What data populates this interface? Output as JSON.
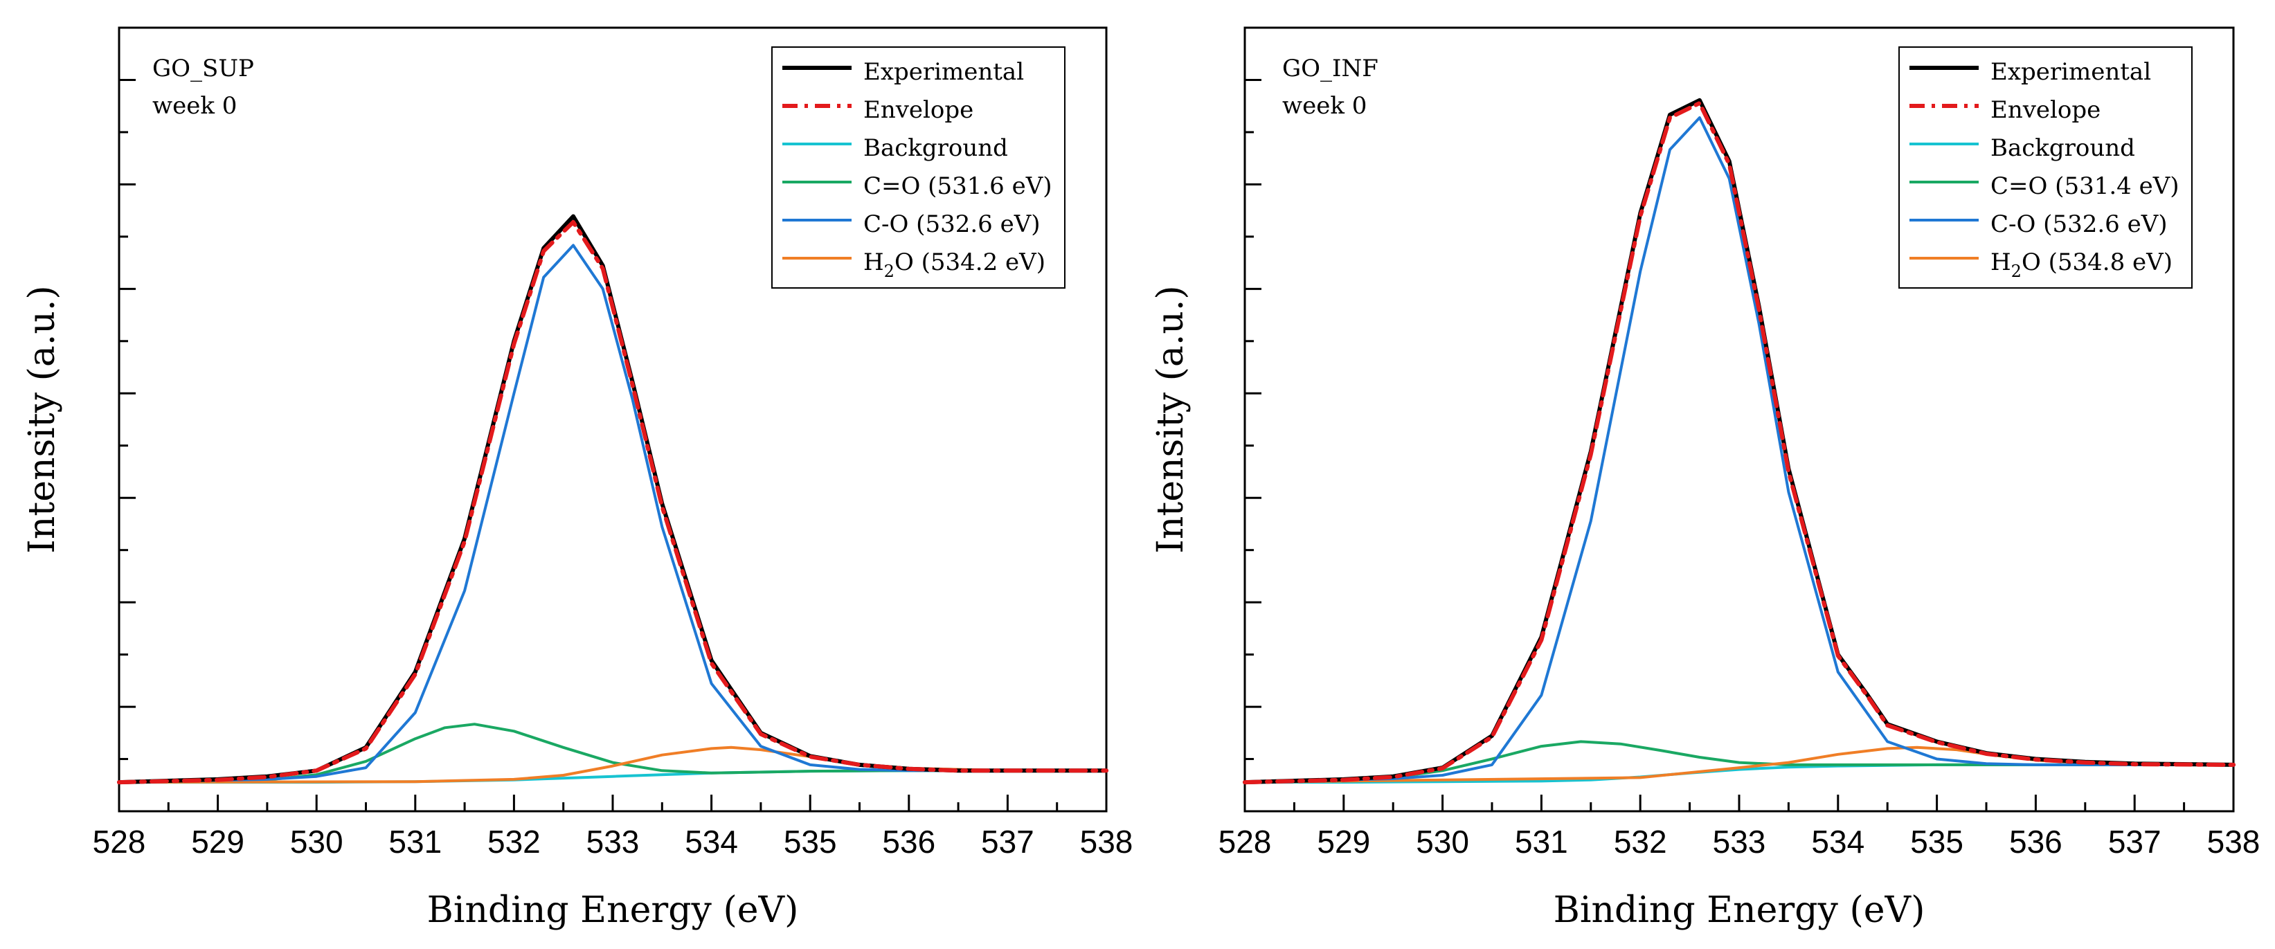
{
  "chart_data": [
    {
      "type": "line",
      "sample": "GO_SUP",
      "period": "week 0",
      "xlabel": "Binding Energy (eV)",
      "ylabel": "Intensity (a.u.)",
      "xlim": [
        528,
        538
      ],
      "ylim": [
        -0.05,
        1.3
      ],
      "x_ticks": [
        "528",
        "529",
        "530",
        "531",
        "532",
        "533",
        "534",
        "535",
        "536",
        "537",
        "538"
      ],
      "legend_position": "top-right",
      "background": {
        "start": 0.0,
        "end": 0.02
      },
      "series": [
        {
          "name": "Experimental",
          "color": "#000000",
          "style": "solid",
          "x": [
            528,
            529,
            529.5,
            530,
            530.5,
            531,
            531.5,
            532,
            532.3,
            532.6,
            532.9,
            533.2,
            533.5,
            534,
            534.5,
            535,
            535.5,
            536,
            536.5,
            537,
            538
          ],
          "y": [
            0.0,
            0.005,
            0.01,
            0.02,
            0.06,
            0.19,
            0.42,
            0.76,
            0.92,
            0.975,
            0.89,
            0.69,
            0.48,
            0.21,
            0.085,
            0.045,
            0.03,
            0.023,
            0.02,
            0.02,
            0.02
          ]
        },
        {
          "name": "Envelope",
          "color": "#e31a1c",
          "style": "dashdot",
          "x": [
            528,
            529,
            529.5,
            530,
            530.5,
            531,
            531.5,
            532,
            532.3,
            532.6,
            532.9,
            533.2,
            533.5,
            534,
            534.5,
            535,
            535.5,
            536,
            536.5,
            537,
            538
          ],
          "y": [
            0.0,
            0.004,
            0.009,
            0.02,
            0.058,
            0.186,
            0.415,
            0.755,
            0.915,
            0.965,
            0.885,
            0.685,
            0.475,
            0.205,
            0.083,
            0.044,
            0.03,
            0.023,
            0.02,
            0.02,
            0.02
          ]
        },
        {
          "name": "Background",
          "color": "#17c3d1",
          "style": "solid",
          "x": [
            528,
            529,
            530,
            531,
            532,
            533,
            534,
            535,
            536,
            537,
            538
          ],
          "y": [
            0.0,
            0.0,
            0.0,
            0.001,
            0.004,
            0.01,
            0.016,
            0.019,
            0.02,
            0.02,
            0.02
          ]
        },
        {
          "name": "C=O (531.6 eV)",
          "color": "#1aa863",
          "style": "solid",
          "x": [
            528,
            529,
            529.5,
            530,
            530.5,
            531,
            531.3,
            531.6,
            532,
            532.5,
            533,
            533.5,
            534,
            535,
            536,
            538
          ],
          "y": [
            0.0,
            0.001,
            0.004,
            0.013,
            0.036,
            0.075,
            0.094,
            0.1,
            0.088,
            0.06,
            0.034,
            0.02,
            0.016,
            0.019,
            0.02,
            0.02
          ]
        },
        {
          "name": "C-O (532.6 eV)",
          "color": "#1f78d4",
          "style": "solid",
          "x": [
            528,
            529.5,
            530,
            530.5,
            531,
            531.5,
            532,
            532.3,
            532.6,
            532.9,
            533.2,
            533.5,
            534,
            534.5,
            535,
            535.5,
            536,
            538
          ],
          "y": [
            0.0,
            0.005,
            0.01,
            0.025,
            0.12,
            0.33,
            0.67,
            0.87,
            0.925,
            0.85,
            0.66,
            0.44,
            0.17,
            0.062,
            0.03,
            0.022,
            0.02,
            0.02
          ]
        },
        {
          "name": "H2O (534.2 eV)",
          "color": "#f07e26",
          "style": "solid",
          "x": [
            528,
            531,
            532,
            532.5,
            533,
            533.5,
            534,
            534.2,
            534.5,
            535,
            535.5,
            536,
            537,
            538
          ],
          "y": [
            0.0,
            0.001,
            0.005,
            0.012,
            0.028,
            0.047,
            0.058,
            0.06,
            0.056,
            0.044,
            0.031,
            0.024,
            0.02,
            0.02
          ]
        }
      ]
    },
    {
      "type": "line",
      "sample": "GO_INF",
      "period": "week 0",
      "xlabel": "Binding Energy (eV)",
      "ylabel": "Intensity (a.u.)",
      "xlim": [
        528,
        538
      ],
      "ylim": [
        -0.05,
        1.3
      ],
      "x_ticks": [
        "528",
        "529",
        "530",
        "531",
        "532",
        "533",
        "534",
        "535",
        "536",
        "537",
        "538"
      ],
      "legend_position": "top-right",
      "background": {
        "start": 0.0,
        "end": 0.03
      },
      "series": [
        {
          "name": "Experimental",
          "color": "#000000",
          "style": "solid",
          "x": [
            528,
            529,
            529.5,
            530,
            530.5,
            531,
            531.5,
            532,
            532.3,
            532.6,
            532.9,
            533.2,
            533.5,
            534,
            534.3,
            534.5,
            535,
            535.5,
            536,
            536.5,
            537,
            538
          ],
          "y": [
            0.0,
            0.005,
            0.01,
            0.025,
            0.08,
            0.25,
            0.57,
            0.98,
            1.15,
            1.175,
            1.07,
            0.82,
            0.54,
            0.22,
            0.15,
            0.1,
            0.07,
            0.05,
            0.04,
            0.035,
            0.032,
            0.03
          ]
        },
        {
          "name": "Envelope",
          "color": "#e31a1c",
          "style": "dashdot",
          "x": [
            528,
            529,
            529.5,
            530,
            530.5,
            531,
            531.5,
            532,
            532.3,
            532.6,
            532.9,
            533.2,
            533.5,
            534,
            534.3,
            534.5,
            535,
            535.5,
            536,
            536.5,
            537,
            538
          ],
          "y": [
            0.0,
            0.004,
            0.009,
            0.024,
            0.078,
            0.245,
            0.565,
            0.975,
            1.145,
            1.17,
            1.065,
            0.815,
            0.535,
            0.218,
            0.148,
            0.098,
            0.069,
            0.049,
            0.039,
            0.034,
            0.031,
            0.03
          ]
        },
        {
          "name": "Background",
          "color": "#17c3d1",
          "style": "solid",
          "x": [
            528,
            529,
            530,
            531,
            531.5,
            532,
            532.5,
            533,
            533.5,
            534,
            535,
            536,
            537,
            538
          ],
          "y": [
            0.0,
            0.0,
            0.001,
            0.002,
            0.004,
            0.009,
            0.016,
            0.022,
            0.026,
            0.028,
            0.03,
            0.03,
            0.03,
            0.03
          ]
        },
        {
          "name": "C=O (531.4 eV)",
          "color": "#1aa863",
          "style": "solid",
          "x": [
            528,
            529,
            529.5,
            530,
            530.5,
            531,
            531.4,
            531.8,
            532.2,
            532.6,
            533,
            533.5,
            534,
            535,
            536,
            538
          ],
          "y": [
            0.0,
            0.003,
            0.008,
            0.02,
            0.04,
            0.062,
            0.07,
            0.066,
            0.055,
            0.043,
            0.034,
            0.03,
            0.03,
            0.03,
            0.03,
            0.03
          ]
        },
        {
          "name": "C-O (532.6 eV)",
          "color": "#1f78d4",
          "style": "solid",
          "x": [
            528,
            529.5,
            530,
            530.5,
            531,
            531.5,
            532,
            532.3,
            532.6,
            532.9,
            533.2,
            533.5,
            534,
            534.5,
            535,
            535.5,
            536,
            538
          ],
          "y": [
            0.0,
            0.006,
            0.012,
            0.03,
            0.15,
            0.45,
            0.88,
            1.09,
            1.145,
            1.04,
            0.79,
            0.5,
            0.19,
            0.07,
            0.04,
            0.032,
            0.03,
            0.03
          ]
        },
        {
          "name": "H2O (534.8 eV)",
          "color": "#f07e26",
          "style": "solid",
          "x": [
            528,
            532,
            533,
            533.5,
            534,
            534.5,
            534.8,
            535.2,
            535.6,
            536,
            536.5,
            537,
            538
          ],
          "y": [
            0.0,
            0.008,
            0.025,
            0.034,
            0.048,
            0.058,
            0.06,
            0.056,
            0.046,
            0.038,
            0.033,
            0.031,
            0.03
          ]
        }
      ]
    }
  ]
}
